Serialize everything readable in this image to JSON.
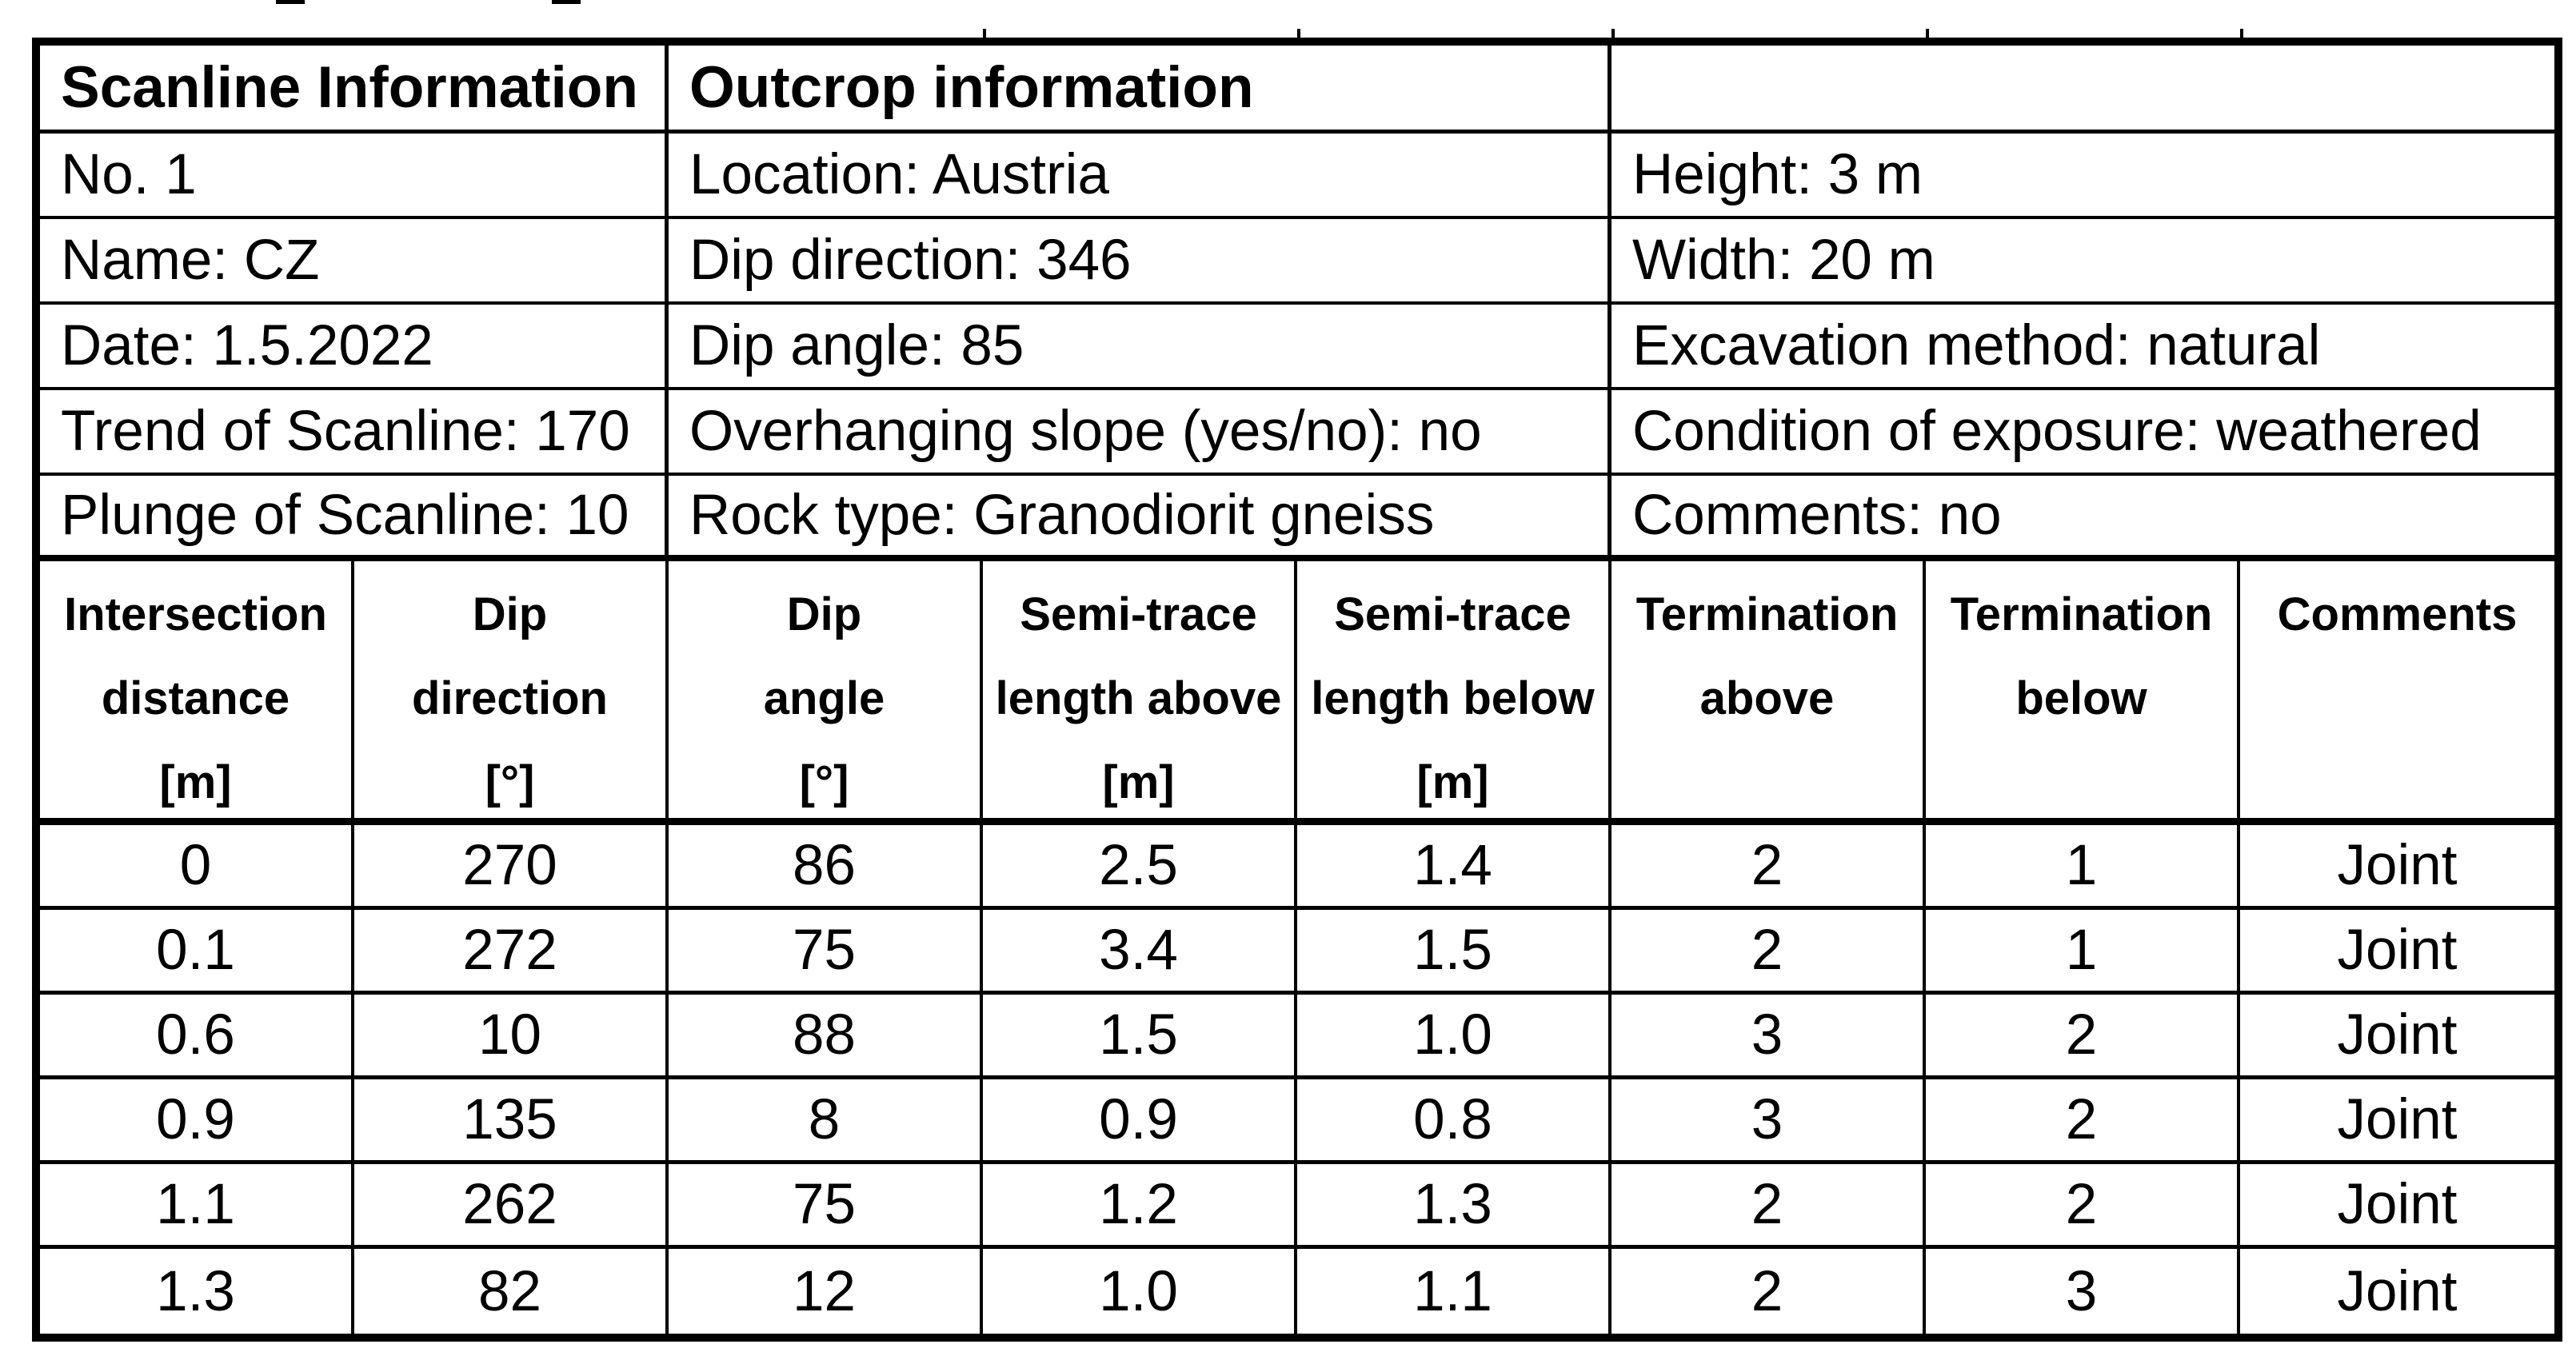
{
  "page": {
    "background": "#ffffff",
    "line_color": "#000000",
    "text_color": "#000000"
  },
  "info_table": {
    "titles": [
      "Scanline Information",
      "Outcrop information",
      ""
    ],
    "rows": [
      [
        "No. 1",
        "Location: Austria",
        "Height: 3 m"
      ],
      [
        "Name: CZ",
        "Dip direction: 346",
        "Width: 20 m"
      ],
      [
        "Date: 1.5.2022",
        "Dip angle: 85",
        "Excavation method: natural"
      ],
      [
        "Trend of Scanline: 170",
        "Overhanging slope (yes/no): no",
        "Condition of exposure: weathered"
      ],
      [
        "Plunge of Scanline: 10",
        "Rock type: Granodiorit gneiss",
        "Comments: no"
      ]
    ]
  },
  "log_table": {
    "headers": [
      [
        "Intersection",
        "distance",
        "[m]"
      ],
      [
        "Dip",
        "direction",
        "[°]"
      ],
      [
        "Dip",
        "angle",
        "[°]"
      ],
      [
        "Semi-trace",
        "length above",
        "[m]"
      ],
      [
        "Semi-trace",
        "length below",
        "[m]"
      ],
      [
        "Termination",
        "above"
      ],
      [
        "Termination",
        "below"
      ],
      [
        "Comments"
      ]
    ],
    "rows": [
      [
        "0",
        "270",
        "86",
        "2.5",
        "1.4",
        "2",
        "1",
        "Joint"
      ],
      [
        "0.1",
        "272",
        "75",
        "3.4",
        "1.5",
        "2",
        "1",
        "Joint"
      ],
      [
        "0.6",
        "10",
        "88",
        "1.5",
        "1.0",
        "3",
        "2",
        "Joint"
      ],
      [
        "0.9",
        "135",
        "8",
        "0.9",
        "0.8",
        "3",
        "2",
        "Joint"
      ],
      [
        "1.1",
        "262",
        "75",
        "1.2",
        "1.3",
        "2",
        "2",
        "Joint"
      ],
      [
        "1.3",
        "82",
        "12",
        "1.0",
        "1.1",
        "2",
        "3",
        "Joint"
      ]
    ]
  }
}
